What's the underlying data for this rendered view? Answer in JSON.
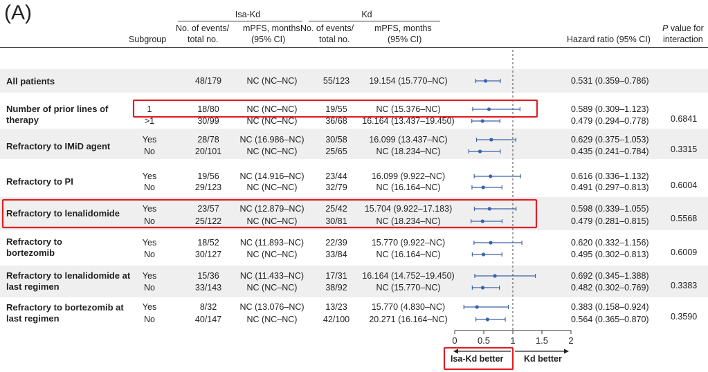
{
  "panel_label": "(A)",
  "header": {
    "group1": "Isa-Kd",
    "group2": "Kd",
    "events_line1": "No. of events/",
    "events_line2": "total no.",
    "mpfs_line1": "mPFS, months",
    "mpfs_line2": "(95% CI)",
    "subgroup": "Subgroup",
    "hr": "Hazard ratio (95% CI)",
    "p_line1_italic": "P",
    "p_line1_rest": " value for",
    "p_line2": "interaction"
  },
  "rows": [
    {
      "label": "All patients",
      "level": "",
      "isa_events": "48/179",
      "isa_mpfs": "NC (NC–NC)",
      "kd_events": "55/123",
      "kd_mpfs": "19.154 (15.770–NC)",
      "hr_text": "0.531 (0.359–0.786)",
      "p": ""
    },
    {
      "label": "Number of prior lines of therapy",
      "level": "1",
      "isa_events": "18/80",
      "isa_mpfs": "NC (NC–NC)",
      "kd_events": "19/55",
      "kd_mpfs": "NC (15.376–NC)",
      "hr_text": "0.589 (0.309–1.123)",
      "p": "0.6841"
    },
    {
      "label": "",
      "level": ">1",
      "isa_events": "30/99",
      "isa_mpfs": "NC (NC–NC)",
      "kd_events": "36/68",
      "kd_mpfs": "16.164 (13.437–19.450)",
      "hr_text": "0.479 (0.294–0.778)",
      "p": ""
    },
    {
      "label": "Refractory to IMiD agent",
      "level": "Yes",
      "isa_events": "28/78",
      "isa_mpfs": "NC (16.986–NC)",
      "kd_events": "30/58",
      "kd_mpfs": "16.099 (13.437–NC)",
      "hr_text": "0.629 (0.375–1.053)",
      "p": "0.3315"
    },
    {
      "label": "",
      "level": "No",
      "isa_events": "20/101",
      "isa_mpfs": "NC (NC–NC)",
      "kd_events": "25/65",
      "kd_mpfs": "NC (18.234–NC)",
      "hr_text": "0.435 (0.241–0.784)",
      "p": ""
    },
    {
      "label": "Refractory to PI",
      "level": "Yes",
      "isa_events": "19/56",
      "isa_mpfs": "NC (14.916–NC)",
      "kd_events": "23/44",
      "kd_mpfs": "16.099 (9.922–NC)",
      "hr_text": "0.616 (0.336–1.132)",
      "p": "0.6004"
    },
    {
      "label": "",
      "level": "No",
      "isa_events": "29/123",
      "isa_mpfs": "NC (NC–NC)",
      "kd_events": "32/79",
      "kd_mpfs": "NC (16.164–NC)",
      "hr_text": "0.491 (0.297–0.813)",
      "p": ""
    },
    {
      "label": "Refractory to lenalidomide",
      "level": "Yes",
      "isa_events": "23/57",
      "isa_mpfs": "NC (12.879–NC)",
      "kd_events": "25/42",
      "kd_mpfs": "15.704 (9.922–17.183)",
      "hr_text": "0.598 (0.339–1.055)",
      "p": "0.5568"
    },
    {
      "label": "",
      "level": "No",
      "isa_events": "25/122",
      "isa_mpfs": "NC (NC–NC)",
      "kd_events": "30/81",
      "kd_mpfs": "NC (18.234–NC)",
      "hr_text": "0.479 (0.281–0.815)",
      "p": ""
    },
    {
      "label": "Refractory to bortezomib",
      "level": "Yes",
      "isa_events": "18/52",
      "isa_mpfs": "NC (11.893–NC)",
      "kd_events": "22/39",
      "kd_mpfs": "15.770 (9.922–NC)",
      "hr_text": "0.620 (0.332–1.156)",
      "p": "0.6009"
    },
    {
      "label": "",
      "level": "No",
      "isa_events": "30/127",
      "isa_mpfs": "NC (NC–NC)",
      "kd_events": "33/84",
      "kd_mpfs": "NC (16.164–NC)",
      "hr_text": "0.495 (0.302–0.813)",
      "p": ""
    },
    {
      "label": "Refractory to lenalidomide at last regimen",
      "level": "Yes",
      "isa_events": "15/36",
      "isa_mpfs": "NC (11.433–NC)",
      "kd_events": "17/31",
      "kd_mpfs": "16.164 (14.752–19.450)",
      "hr_text": "0.692 (0.345–1.388)",
      "p": "0.3383"
    },
    {
      "label": "",
      "level": "No",
      "isa_events": "33/143",
      "isa_mpfs": "NC (NC–NC)",
      "kd_events": "38/92",
      "kd_mpfs": "NC (15.770–NC)",
      "hr_text": "0.482 (0.302–0.769)",
      "p": ""
    },
    {
      "label": "Refractory to bortezomib at last regimen",
      "level": "Yes",
      "isa_events": "8/32",
      "isa_mpfs": "NC (13.076–NC)",
      "kd_events": "13/23",
      "kd_mpfs": "15.770 (4.830–NC)",
      "hr_text": "0.383 (0.158–0.924)",
      "p": "0.3590"
    },
    {
      "label": "",
      "level": "No",
      "isa_events": "40/147",
      "isa_mpfs": "NC (NC–NC)",
      "kd_events": "42/100",
      "kd_mpfs": "20.271 (16.164–NC)",
      "hr_text": "0.564 (0.365–0.870)",
      "p": ""
    }
  ],
  "chart_data": {
    "type": "scatter",
    "subtype": "forest",
    "x_ticks": [
      "0",
      "0.5",
      "1",
      "1.5",
      "2"
    ],
    "xlim": [
      0,
      2
    ],
    "reference_line": 1,
    "points": [
      {
        "hr": 0.531,
        "lo": 0.359,
        "hi": 0.786
      },
      {
        "hr": 0.589,
        "lo": 0.309,
        "hi": 1.123
      },
      {
        "hr": 0.479,
        "lo": 0.294,
        "hi": 0.778
      },
      {
        "hr": 0.629,
        "lo": 0.375,
        "hi": 1.053
      },
      {
        "hr": 0.435,
        "lo": 0.241,
        "hi": 0.784
      },
      {
        "hr": 0.616,
        "lo": 0.336,
        "hi": 1.132
      },
      {
        "hr": 0.491,
        "lo": 0.297,
        "hi": 0.813
      },
      {
        "hr": 0.598,
        "lo": 0.339,
        "hi": 1.055
      },
      {
        "hr": 0.479,
        "lo": 0.281,
        "hi": 0.815
      },
      {
        "hr": 0.62,
        "lo": 0.332,
        "hi": 1.156
      },
      {
        "hr": 0.495,
        "lo": 0.302,
        "hi": 0.813
      },
      {
        "hr": 0.692,
        "lo": 0.345,
        "hi": 1.388
      },
      {
        "hr": 0.482,
        "lo": 0.302,
        "hi": 0.769
      },
      {
        "hr": 0.383,
        "lo": 0.158,
        "hi": 0.924
      },
      {
        "hr": 0.564,
        "lo": 0.365,
        "hi": 0.87
      }
    ],
    "left_label": "Isa-Kd better",
    "right_label": "Kd better",
    "point_color": "#3a62a8",
    "highlight_color": "#e01e25",
    "band_color": "#efefef"
  }
}
